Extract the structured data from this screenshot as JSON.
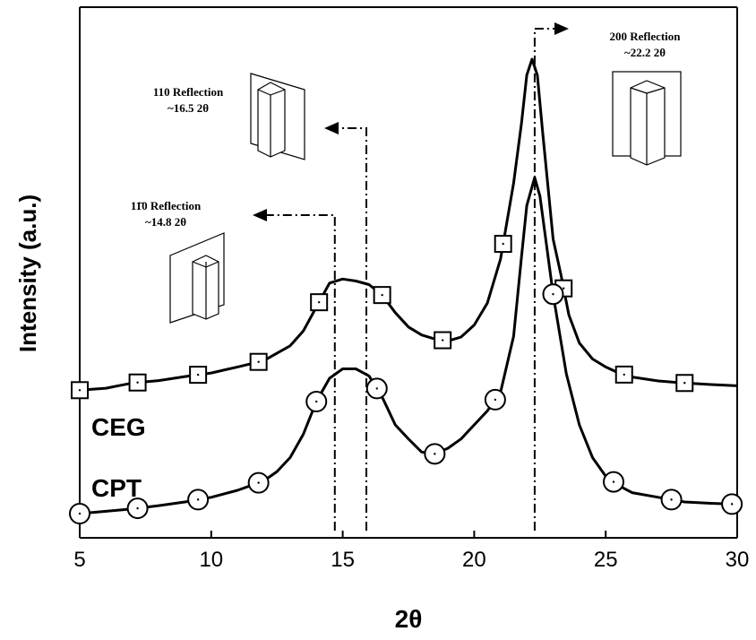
{
  "chart_data": {
    "type": "line",
    "xlabel": "2θ",
    "ylabel": "Intensity (a.u.)",
    "xlim": [
      5,
      30
    ],
    "x_ticks": [
      "5",
      "10",
      "15",
      "20",
      "25",
      "30"
    ],
    "grid": false,
    "series": [
      {
        "name": "CEG",
        "marker": "square",
        "x": [
          5,
          6,
          7,
          8,
          9,
          10,
          11,
          12,
          13,
          13.5,
          14,
          14.5,
          15,
          15.5,
          16,
          16.5,
          17,
          17.5,
          18,
          18.5,
          19,
          19.5,
          20,
          20.5,
          21,
          21.5,
          21.8,
          22,
          22.2,
          22.4,
          22.6,
          23,
          23.3,
          23.6,
          24,
          24.5,
          25,
          25.5,
          26,
          27,
          28,
          29,
          30
        ],
        "y": [
          0.172,
          0.177,
          0.19,
          0.196,
          0.206,
          0.215,
          0.23,
          0.246,
          0.283,
          0.32,
          0.38,
          0.44,
          0.45,
          0.445,
          0.436,
          0.41,
          0.366,
          0.33,
          0.31,
          0.3,
          0.295,
          0.305,
          0.335,
          0.39,
          0.5,
          0.69,
          0.84,
          0.96,
          1.0,
          0.96,
          0.82,
          0.55,
          0.46,
          0.36,
          0.29,
          0.25,
          0.23,
          0.215,
          0.205,
          0.195,
          0.19,
          0.186,
          0.183
        ],
        "marker_x": [
          5,
          7.2,
          9.5,
          11.8,
          14.1,
          16.5,
          18.8,
          21.1,
          23.4,
          25.7,
          28
        ]
      },
      {
        "name": "CPT",
        "marker": "circle",
        "x": [
          5,
          6,
          7,
          8,
          9,
          10,
          11,
          12,
          12.5,
          13,
          13.5,
          14,
          14.5,
          15,
          15.5,
          16,
          16.5,
          17,
          17.5,
          18,
          18.5,
          19,
          19.5,
          20,
          20.5,
          21,
          21.5,
          21.8,
          22,
          22.3,
          22.5,
          23,
          23.5,
          24,
          24.5,
          25,
          25.5,
          26,
          27,
          28,
          29,
          30
        ],
        "y": [
          0.0,
          0.005,
          0.01,
          0.017,
          0.025,
          0.035,
          0.05,
          0.07,
          0.09,
          0.12,
          0.17,
          0.24,
          0.29,
          0.31,
          0.31,
          0.295,
          0.25,
          0.19,
          0.16,
          0.132,
          0.128,
          0.14,
          0.16,
          0.19,
          0.22,
          0.26,
          0.38,
          0.55,
          0.66,
          0.72,
          0.68,
          0.47,
          0.3,
          0.19,
          0.12,
          0.08,
          0.06,
          0.045,
          0.035,
          0.025,
          0.022,
          0.02
        ],
        "marker_x": [
          5,
          7.2,
          9.5,
          11.8,
          14,
          16.3,
          18.5,
          20.8,
          23,
          25.3,
          27.5,
          29.8
        ]
      }
    ],
    "reference_lines": [
      {
        "x": 14.7,
        "label_line1": "11̄0 Reflection",
        "label_line2": "~14.8 2θ",
        "arrow": "left"
      },
      {
        "x": 15.9,
        "label_line1": "110 Reflection",
        "label_line2": "~16.5 2θ",
        "arrow": "left"
      },
      {
        "x": 22.3,
        "label_line1": "200 Reflection",
        "label_line2": "~22.2 2θ",
        "arrow": "right"
      }
    ]
  }
}
